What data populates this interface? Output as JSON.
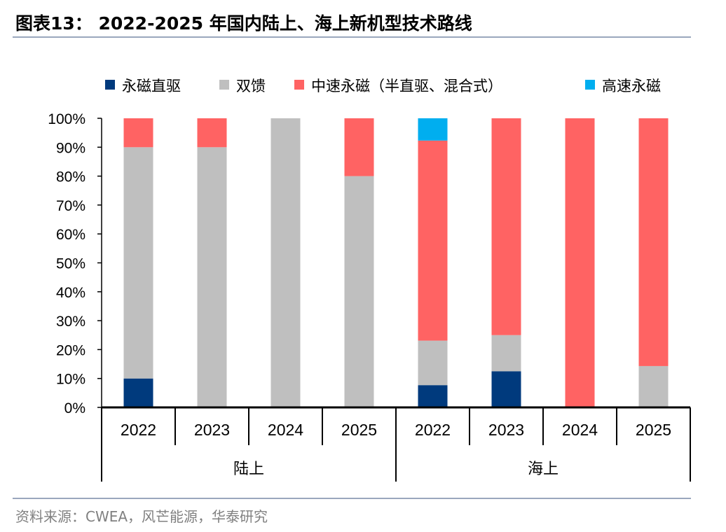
{
  "header": {
    "title": "图表13：  2022-2025 年国内陆上、海上新机型技术路线"
  },
  "footer": {
    "source": "资料来源：CWEA，风芒能源，华泰研究"
  },
  "chart_data": {
    "type": "bar",
    "stacked": true,
    "title": "2022-2025 年国内陆上、海上新机型技术路线",
    "groups": [
      {
        "name": "陆上",
        "categories": [
          "2022",
          "2023",
          "2024",
          "2025"
        ]
      },
      {
        "name": "海上",
        "categories": [
          "2022",
          "2023",
          "2024",
          "2025"
        ]
      }
    ],
    "series": [
      {
        "name": "永磁直驱",
        "color": "#003a7d",
        "values": [
          10,
          0,
          0,
          0,
          7.7,
          12.5,
          0,
          0
        ]
      },
      {
        "name": "双馈",
        "color": "#bfbfbf",
        "values": [
          80,
          90,
          100,
          80,
          15.4,
          12.5,
          0,
          14.3
        ]
      },
      {
        "name": "中速永磁（半直驱、混合式）",
        "color": "#ff6363",
        "values": [
          10,
          10,
          0,
          20,
          69.2,
          75,
          100,
          85.7
        ]
      },
      {
        "name": "高速永磁",
        "color": "#00aeef",
        "values": [
          0,
          0,
          0,
          0,
          7.7,
          0,
          0,
          0
        ]
      }
    ],
    "yticks": [
      "0%",
      "10%",
      "20%",
      "30%",
      "40%",
      "50%",
      "60%",
      "70%",
      "80%",
      "90%",
      "100%"
    ],
    "ylim": [
      0,
      100
    ],
    "legend": "top",
    "grid": false
  }
}
